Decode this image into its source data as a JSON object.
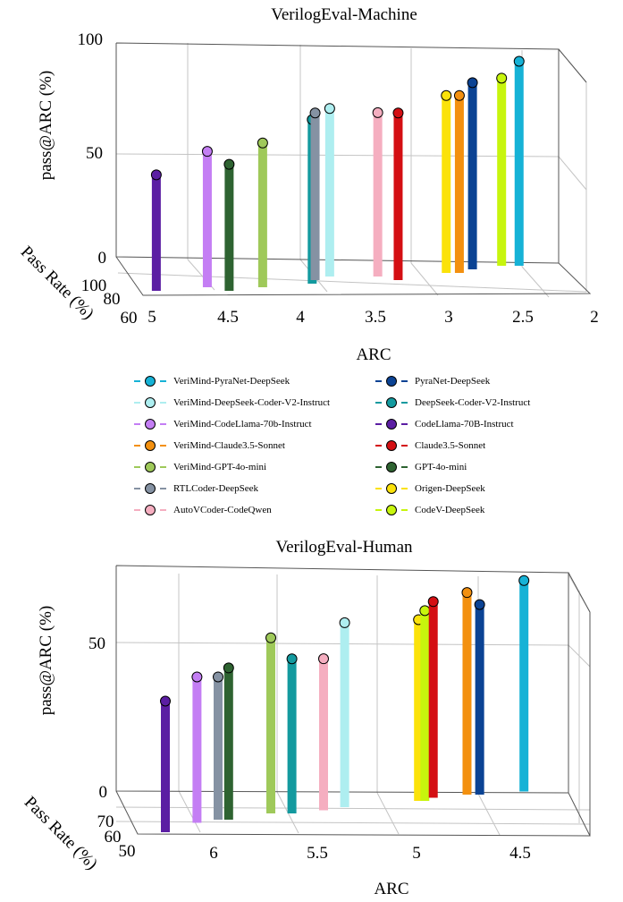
{
  "series_styles": {
    "VeriMind-PyraNet-DeepSeek": "#16b2d6",
    "VeriMind-DeepSeek-Coder-V2-Instruct": "#aeeef0",
    "VeriMind-CodeLlama-70b-Instruct": "#c47ef4",
    "VeriMind-Claude3.5-Sonnet": "#f3900f",
    "VeriMind-GPT-4o-mini": "#9fc95a",
    "RTLCoder-DeepSeek": "#8592a3",
    "AutoVCoder-CodeQwen": "#f5aec0",
    "PyraNet-DeepSeek": "#0b4394",
    "DeepSeek-Coder-V2-Instruct": "#139a9f",
    "CodeLlama-70B-Instruct": "#5b1ea3",
    "Claude3.5-Sonnet": "#d40f13",
    "GPT-4o-mini": "#2e6331",
    "Origen-DeepSeek": "#fbe20a",
    "CodeV-DeepSeek": "#c7f50d"
  },
  "legend": [
    "VeriMind-PyraNet-DeepSeek",
    "PyraNet-DeepSeek",
    "VeriMind-DeepSeek-Coder-V2-Instruct",
    "DeepSeek-Coder-V2-Instruct",
    "VeriMind-CodeLlama-70b-Instruct",
    "CodeLlama-70B-Instruct",
    "VeriMind-Claude3.5-Sonnet",
    "Claude3.5-Sonnet",
    "VeriMind-GPT-4o-mini",
    "GPT-4o-mini",
    "RTLCoder-DeepSeek",
    "Origen-DeepSeek",
    "AutoVCoder-CodeQwen",
    "CodeV-DeepSeek"
  ],
  "chart_data": [
    {
      "type": "bar3d",
      "title": "VerilogEval-Machine",
      "xlabel": "ARC",
      "ylabel": "pass@ARC (%)",
      "zlabel": "Pass Rate (%)",
      "x_ticks": [
        "5",
        "4.5",
        "4",
        "3.5",
        "3",
        "2.5",
        "2"
      ],
      "y_ticks": [
        "100",
        "50",
        "0"
      ],
      "z_ticks": [
        "100",
        "80",
        "60"
      ],
      "grid": true,
      "points": [
        {
          "series": "CodeLlama-70B-Instruct",
          "arc": 4.97,
          "pass_arc": 39,
          "pass_rate": 72
        },
        {
          "series": "VeriMind-CodeLlama-70b-Instruct",
          "arc": 4.62,
          "pass_arc": 50,
          "pass_rate": 73
        },
        {
          "series": "GPT-4o-mini",
          "arc": 4.47,
          "pass_arc": 44,
          "pass_rate": 72
        },
        {
          "series": "VeriMind-GPT-4o-mini",
          "arc": 4.24,
          "pass_arc": 54,
          "pass_rate": 73
        },
        {
          "series": "DeepSeek-Coder-V2-Instruct",
          "arc": 3.9,
          "pass_arc": 65,
          "pass_rate": 74
        },
        {
          "series": "RTLCoder-DeepSeek",
          "arc": 3.88,
          "pass_arc": 68,
          "pass_rate": 75
        },
        {
          "series": "VeriMind-DeepSeek-Coder-V2-Instruct",
          "arc": 3.78,
          "pass_arc": 70,
          "pass_rate": 76
        },
        {
          "series": "AutoVCoder-CodeQwen",
          "arc": 3.45,
          "pass_arc": 68,
          "pass_rate": 76
        },
        {
          "series": "Claude3.5-Sonnet",
          "arc": 3.31,
          "pass_arc": 68,
          "pass_rate": 75
        },
        {
          "series": "Origen-DeepSeek",
          "arc": 2.98,
          "pass_arc": 76,
          "pass_rate": 77
        },
        {
          "series": "VeriMind-Claude3.5-Sonnet",
          "arc": 2.89,
          "pass_arc": 76,
          "pass_rate": 77
        },
        {
          "series": "PyraNet-DeepSeek",
          "arc": 2.8,
          "pass_arc": 82,
          "pass_rate": 78
        },
        {
          "series": "CodeV-DeepSeek",
          "arc": 2.6,
          "pass_arc": 84,
          "pass_rate": 79
        },
        {
          "series": "VeriMind-PyraNet-DeepSeek",
          "arc": 2.48,
          "pass_arc": 92,
          "pass_rate": 79
        }
      ]
    },
    {
      "type": "bar3d",
      "title": "VerilogEval-Human",
      "xlabel": "ARC",
      "ylabel": "pass@ARC (%)",
      "zlabel": "Pass Rate (%)",
      "x_ticks": [
        "6",
        "5.5",
        "5",
        "4.5"
      ],
      "y_ticks": [
        "50",
        "0"
      ],
      "z_ticks": [
        "70",
        "60",
        "50"
      ],
      "grid": true,
      "points": [
        {
          "series": "CodeLlama-70B-Instruct",
          "arc": 6.15,
          "pass_arc": 30,
          "pass_rate": 52
        },
        {
          "series": "VeriMind-CodeLlama-70b-Instruct",
          "arc": 6.0,
          "pass_arc": 38,
          "pass_rate": 55
        },
        {
          "series": "RTLCoder-DeepSeek",
          "arc": 5.9,
          "pass_arc": 38,
          "pass_rate": 56
        },
        {
          "series": "GPT-4o-mini",
          "arc": 5.85,
          "pass_arc": 41,
          "pass_rate": 56
        },
        {
          "series": "VeriMind-GPT-4o-mini",
          "arc": 5.65,
          "pass_arc": 51,
          "pass_rate": 58
        },
        {
          "series": "DeepSeek-Coder-V2-Instruct",
          "arc": 5.55,
          "pass_arc": 44,
          "pass_rate": 58
        },
        {
          "series": "AutoVCoder-CodeQwen",
          "arc": 5.4,
          "pass_arc": 44,
          "pass_rate": 59
        },
        {
          "series": "VeriMind-DeepSeek-Coder-V2-Instruct",
          "arc": 5.3,
          "pass_arc": 56,
          "pass_rate": 60
        },
        {
          "series": "Origen-DeepSeek",
          "arc": 4.95,
          "pass_arc": 57,
          "pass_rate": 62
        },
        {
          "series": "CodeV-DeepSeek",
          "arc": 4.92,
          "pass_arc": 60,
          "pass_rate": 62
        },
        {
          "series": "Claude3.5-Sonnet",
          "arc": 4.88,
          "pass_arc": 63,
          "pass_rate": 63
        },
        {
          "series": "VeriMind-Claude3.5-Sonnet",
          "arc": 4.72,
          "pass_arc": 66,
          "pass_rate": 64
        },
        {
          "series": "PyraNet-DeepSeek",
          "arc": 4.66,
          "pass_arc": 62,
          "pass_rate": 64
        },
        {
          "series": "VeriMind-PyraNet-DeepSeek",
          "arc": 4.45,
          "pass_arc": 70,
          "pass_rate": 65
        }
      ]
    }
  ]
}
